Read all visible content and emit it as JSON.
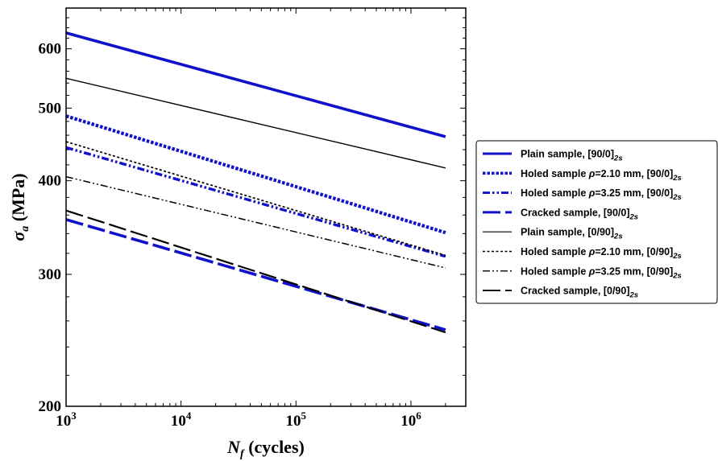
{
  "chart_data": {
    "type": "line",
    "xscale": "log",
    "yscale": "log",
    "xlim": [
      1000,
      3000000
    ],
    "ylim": [
      200,
      680
    ],
    "xlabel": {
      "symbol": "N",
      "sub": "f",
      "suffix": " (cycles)"
    },
    "ylabel": {
      "symbol": "σ",
      "sub": "a",
      "suffix": " (MPa)"
    },
    "xticks": [
      {
        "value": 1000,
        "base": "10",
        "exp": "3"
      },
      {
        "value": 10000,
        "base": "10",
        "exp": "4"
      },
      {
        "value": 100000,
        "base": "10",
        "exp": "5"
      },
      {
        "value": 1000000,
        "base": "10",
        "exp": "6"
      }
    ],
    "yticks": [
      {
        "value": 200,
        "label": "200"
      },
      {
        "value": 300,
        "label": "300"
      },
      {
        "value": 400,
        "label": "400"
      },
      {
        "value": 500,
        "label": "500"
      },
      {
        "value": 600,
        "label": "600"
      }
    ],
    "legend_position": "right",
    "series": [
      {
        "name": "Plain sample, [90/0]",
        "sub": "2s",
        "color": "#1111cc",
        "style": "solid-thick",
        "x": [
          1000,
          2000000
        ],
        "y": [
          630,
          458
        ]
      },
      {
        "name": "Holed sample ρ=2.10 mm, [90/0]",
        "sub": "2s",
        "color": "#1111cc",
        "style": "dotted-thick",
        "x": [
          1000,
          2000000
        ],
        "y": [
          488,
          341
        ]
      },
      {
        "name": "Holed sample ρ=3.25 mm, [90/0]",
        "sub": "2s",
        "color": "#1111cc",
        "style": "dashdotdot-thick",
        "x": [
          1000,
          2000000
        ],
        "y": [
          443,
          317
        ]
      },
      {
        "name": "Cracked sample, [90/0]",
        "sub": "2s",
        "color": "#1111cc",
        "style": "longdash-thick",
        "x": [
          1000,
          2000000
        ],
        "y": [
          355,
          253
        ]
      },
      {
        "name": "Plain sample, [0/90]",
        "sub": "2s",
        "color": "#000000",
        "style": "solid-thin",
        "x": [
          1000,
          2000000
        ],
        "y": [
          548,
          416
        ]
      },
      {
        "name": "Holed sample ρ=2.10 mm, [0/90]",
        "sub": "2s",
        "color": "#000000",
        "style": "dotted-thin",
        "x": [
          1000,
          2000000
        ],
        "y": [
          451,
          318
        ]
      },
      {
        "name": "Holed sample ρ=3.25 mm, [0/90]",
        "sub": "2s",
        "color": "#000000",
        "style": "dashdotdot-thin",
        "x": [
          1000,
          2000000
        ],
        "y": [
          405,
          306
        ]
      },
      {
        "name": "Cracked sample, [0/90]",
        "sub": "2s",
        "color": "#000000",
        "style": "longdash-thin",
        "x": [
          1000,
          2000000
        ],
        "y": [
          365,
          251
        ]
      }
    ]
  }
}
